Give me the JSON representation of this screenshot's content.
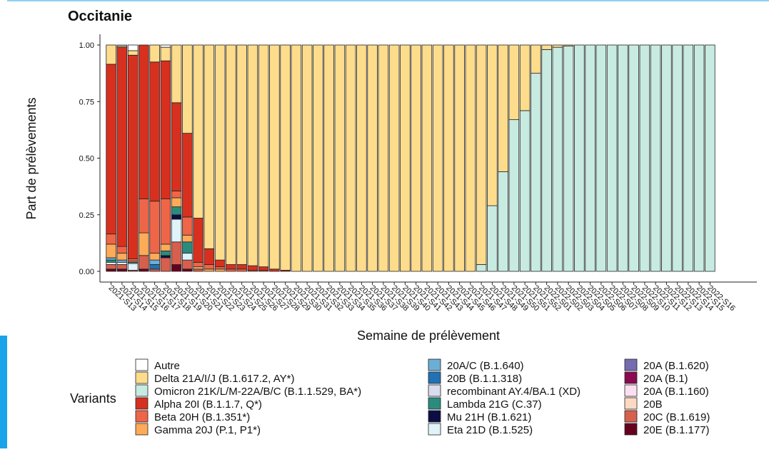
{
  "chart_data": {
    "type": "stacked-bar",
    "title": "Occitanie",
    "x_label": "Semaine de prélèvement",
    "y_label": "Part de prélèvements",
    "legend_title": "Variants",
    "ylim": [
      0,
      1.0
    ],
    "yticks": [
      {
        "value": 0,
        "label": "0.00"
      },
      {
        "value": 0.25,
        "label": "0.25"
      },
      {
        "value": 0.5,
        "label": "0.50"
      },
      {
        "value": 0.75,
        "label": "0.75"
      },
      {
        "value": 1.0,
        "label": "1.00"
      }
    ],
    "categories": [
      "2021-S13",
      "2021-S14",
      "2021-S15",
      "2021-S16",
      "2021-S17",
      "2021-S18",
      "2021-S19",
      "2021-S20",
      "2021-S21",
      "2021-S22",
      "2021-S23",
      "2021-S24",
      "2021-S25",
      "2021-S26",
      "2021-S27",
      "2021-S28",
      "2021-S29",
      "2021-S30",
      "2021-S31",
      "2021-S32",
      "2021-S33",
      "2021-S34",
      "2021-S35",
      "2021-S36",
      "2021-S37",
      "2021-S38",
      "2021-S39",
      "2021-S40",
      "2021-S41",
      "2021-S42",
      "2021-S43",
      "2021-S44",
      "2021-S45",
      "2021-S46",
      "2021-S47",
      "2021-S48",
      "2021-S49",
      "2021-S50",
      "2021-S51",
      "2021-S52",
      "2022-S01",
      "2022-S02",
      "2022-S03",
      "2022-S04",
      "2022-S05",
      "2022-S06",
      "2022-S07",
      "2022-S08",
      "2022-S09",
      "2022-S10",
      "2022-S11",
      "2022-S12",
      "2022-S13",
      "2022-S14",
      "2022-S15",
      "2022-S16"
    ],
    "series": [
      {
        "name": "Autre",
        "color": "#ffffff",
        "values": [
          0,
          0.005,
          0.025,
          0,
          0,
          0.01,
          0,
          0,
          0,
          0,
          0,
          0,
          0,
          0,
          0,
          0,
          0,
          0,
          0,
          0,
          0,
          0,
          0,
          0,
          0,
          0,
          0,
          0,
          0,
          0,
          0,
          0,
          0,
          0,
          0,
          0,
          0,
          0,
          0,
          0,
          0,
          0,
          0,
          0,
          0,
          0,
          0,
          0,
          0,
          0,
          0,
          0,
          0,
          0,
          0,
          0
        ]
      },
      {
        "name": "Delta 21A/I/J (B.1.617.2, AY*)",
        "color": "#fddc8c",
        "values": [
          0.085,
          0.005,
          0.02,
          0,
          0.075,
          0.06,
          0.255,
          0.39,
          0.765,
          0.9,
          0.95,
          0.97,
          0.97,
          0.975,
          0.98,
          0.99,
          0.995,
          1,
          1,
          1,
          1,
          1,
          1,
          1,
          1,
          1,
          1,
          1,
          1,
          1,
          1,
          1,
          1,
          1,
          0.97,
          0.71,
          0.56,
          0.33,
          0.29,
          0.125,
          0.02,
          0.01,
          0.005,
          0,
          0,
          0,
          0,
          0,
          0,
          0,
          0,
          0,
          0,
          0,
          0,
          0
        ]
      },
      {
        "name": "Omicron 21K/L/M-22A/B/C (B.1.1.529, BA*)",
        "color": "#c7ebe1",
        "values": [
          0,
          0,
          0,
          0,
          0,
          0,
          0,
          0,
          0,
          0,
          0,
          0,
          0,
          0,
          0,
          0,
          0,
          0,
          0,
          0,
          0,
          0,
          0,
          0,
          0,
          0,
          0,
          0,
          0,
          0,
          0,
          0,
          0,
          0,
          0.03,
          0.29,
          0.44,
          0.67,
          0.71,
          0.875,
          0.98,
          0.99,
          0.995,
          1,
          1,
          1,
          1,
          1,
          1,
          1,
          1,
          1,
          1,
          1,
          1,
          1
        ]
      },
      {
        "name": "Alpha 20I (B.1.1.7, Q*)",
        "color": "#d7301f",
        "values": [
          0.75,
          0.88,
          0.9,
          0.68,
          0.615,
          0.61,
          0.39,
          0.37,
          0.195,
          0.07,
          0.03,
          0.02,
          0.02,
          0.02,
          0.015,
          0.01,
          0.005,
          0,
          0,
          0,
          0,
          0,
          0,
          0,
          0,
          0,
          0,
          0,
          0,
          0,
          0,
          0,
          0,
          0,
          0,
          0,
          0,
          0,
          0,
          0,
          0,
          0,
          0,
          0,
          0,
          0,
          0,
          0,
          0,
          0,
          0,
          0,
          0,
          0,
          0,
          0
        ]
      },
      {
        "name": "Beta 20H (B.1.351*)",
        "color": "#ef6548",
        "values": [
          0.045,
          0.03,
          0.01,
          0.15,
          0.23,
          0.2,
          0.03,
          0.08,
          0.02,
          0.02,
          0.01,
          0.01,
          0.01,
          0.005,
          0.005,
          0,
          0,
          0,
          0,
          0,
          0,
          0,
          0,
          0,
          0,
          0,
          0,
          0,
          0,
          0,
          0,
          0,
          0,
          0,
          0,
          0,
          0,
          0,
          0,
          0,
          0,
          0,
          0,
          0,
          0,
          0,
          0,
          0,
          0,
          0,
          0,
          0,
          0,
          0,
          0,
          0
        ]
      },
      {
        "name": "Gamma 20J (P.1, P1*)",
        "color": "#fdab58",
        "values": [
          0.06,
          0.03,
          0.005,
          0.1,
          0.03,
          0.03,
          0.04,
          0.03,
          0.01,
          0.01,
          0.01,
          0,
          0,
          0,
          0,
          0,
          0,
          0,
          0,
          0,
          0,
          0,
          0,
          0,
          0,
          0,
          0,
          0,
          0,
          0,
          0,
          0,
          0,
          0,
          0,
          0,
          0,
          0,
          0,
          0,
          0,
          0,
          0,
          0,
          0,
          0,
          0,
          0,
          0,
          0,
          0,
          0,
          0,
          0,
          0,
          0
        ]
      },
      {
        "name": "20A/C (B.1.640)",
        "color": "#6baed6",
        "values": [
          0.01,
          0.01,
          0.005,
          0,
          0.02,
          0,
          0,
          0,
          0,
          0,
          0,
          0,
          0,
          0,
          0,
          0,
          0,
          0,
          0,
          0,
          0,
          0,
          0,
          0,
          0,
          0,
          0,
          0,
          0,
          0,
          0,
          0,
          0,
          0,
          0,
          0,
          0,
          0,
          0,
          0,
          0,
          0,
          0,
          0,
          0,
          0,
          0,
          0,
          0,
          0,
          0,
          0,
          0,
          0,
          0,
          0
        ]
      },
      {
        "name": "20B (B.1.1.318)",
        "color": "#2171b5",
        "values": [
          0,
          0,
          0,
          0,
          0.02,
          0,
          0,
          0,
          0,
          0,
          0,
          0,
          0,
          0,
          0,
          0,
          0,
          0,
          0,
          0,
          0,
          0,
          0,
          0,
          0,
          0,
          0,
          0,
          0,
          0,
          0,
          0,
          0,
          0,
          0,
          0,
          0,
          0,
          0,
          0,
          0,
          0,
          0,
          0,
          0,
          0,
          0,
          0,
          0,
          0,
          0,
          0,
          0,
          0,
          0,
          0
        ]
      },
      {
        "name": "recombinant AY.4/BA.1 (XD)",
        "color": "#d9dcee",
        "values": [
          0,
          0,
          0,
          0,
          0,
          0,
          0,
          0,
          0,
          0,
          0,
          0,
          0,
          0,
          0,
          0,
          0,
          0,
          0,
          0,
          0,
          0,
          0,
          0,
          0,
          0,
          0,
          0,
          0,
          0,
          0,
          0,
          0,
          0,
          0,
          0,
          0,
          0,
          0,
          0,
          0,
          0,
          0,
          0,
          0,
          0,
          0,
          0,
          0,
          0,
          0,
          0,
          0,
          0,
          0,
          0
        ]
      },
      {
        "name": "Lambda 21G (C.37)",
        "color": "#2b8c7e",
        "values": [
          0.01,
          0,
          0,
          0,
          0,
          0.02,
          0.035,
          0.05,
          0,
          0,
          0,
          0,
          0,
          0,
          0,
          0,
          0,
          0,
          0,
          0,
          0,
          0,
          0,
          0,
          0,
          0,
          0,
          0,
          0,
          0,
          0,
          0,
          0,
          0,
          0,
          0,
          0,
          0,
          0,
          0,
          0,
          0,
          0,
          0,
          0,
          0,
          0,
          0,
          0,
          0,
          0,
          0,
          0,
          0,
          0,
          0
        ]
      },
      {
        "name": "Mu 21H (B.1.621)",
        "color": "#0d0d45",
        "values": [
          0,
          0,
          0,
          0,
          0,
          0.01,
          0.02,
          0,
          0,
          0,
          0,
          0,
          0,
          0,
          0,
          0,
          0,
          0,
          0,
          0,
          0,
          0,
          0,
          0,
          0,
          0,
          0,
          0,
          0,
          0,
          0,
          0,
          0,
          0,
          0,
          0,
          0,
          0,
          0,
          0,
          0,
          0,
          0,
          0,
          0,
          0,
          0,
          0,
          0,
          0,
          0,
          0,
          0,
          0,
          0,
          0
        ]
      },
      {
        "name": "Eta 21D (B.1.525)",
        "color": "#e0f3f8",
        "values": [
          0.01,
          0.01,
          0.03,
          0,
          0,
          0,
          0.1,
          0.03,
          0,
          0,
          0,
          0,
          0,
          0,
          0,
          0,
          0,
          0,
          0,
          0,
          0,
          0,
          0,
          0,
          0,
          0,
          0,
          0,
          0,
          0,
          0,
          0,
          0,
          0,
          0,
          0,
          0,
          0,
          0,
          0,
          0,
          0,
          0,
          0,
          0,
          0,
          0,
          0,
          0,
          0,
          0,
          0,
          0,
          0,
          0,
          0
        ]
      },
      {
        "name": "20A (B.1.620)",
        "color": "#756bb1",
        "values": [
          0,
          0,
          0,
          0,
          0,
          0,
          0,
          0,
          0,
          0,
          0,
          0,
          0,
          0,
          0,
          0,
          0,
          0,
          0,
          0,
          0,
          0,
          0,
          0,
          0,
          0,
          0,
          0,
          0,
          0,
          0,
          0,
          0,
          0,
          0,
          0,
          0,
          0,
          0,
          0,
          0,
          0,
          0,
          0,
          0,
          0,
          0,
          0,
          0,
          0,
          0,
          0,
          0,
          0,
          0,
          0
        ]
      },
      {
        "name": "20A (B.1)",
        "color": "#8b0a50",
        "values": [
          0,
          0,
          0,
          0,
          0,
          0,
          0,
          0,
          0,
          0,
          0,
          0,
          0,
          0,
          0,
          0,
          0,
          0,
          0,
          0,
          0,
          0,
          0,
          0,
          0,
          0,
          0,
          0,
          0,
          0,
          0,
          0,
          0,
          0,
          0,
          0,
          0,
          0,
          0,
          0,
          0,
          0,
          0,
          0,
          0,
          0,
          0,
          0,
          0,
          0,
          0,
          0,
          0,
          0,
          0,
          0
        ]
      },
      {
        "name": "20A (B.1.160)",
        "color": "#fde0ef",
        "values": [
          0,
          0,
          0,
          0,
          0,
          0,
          0,
          0,
          0,
          0,
          0,
          0,
          0,
          0,
          0,
          0,
          0,
          0,
          0,
          0,
          0,
          0,
          0,
          0,
          0,
          0,
          0,
          0,
          0,
          0,
          0,
          0,
          0,
          0,
          0,
          0,
          0,
          0,
          0,
          0,
          0,
          0,
          0,
          0,
          0,
          0,
          0,
          0,
          0,
          0,
          0,
          0,
          0,
          0,
          0,
          0
        ]
      },
      {
        "name": "20B",
        "color": "#fdd9c4",
        "values": [
          0,
          0,
          0,
          0,
          0,
          0,
          0,
          0,
          0,
          0,
          0,
          0,
          0,
          0,
          0,
          0,
          0,
          0,
          0,
          0,
          0,
          0,
          0,
          0,
          0,
          0,
          0,
          0,
          0,
          0,
          0,
          0,
          0,
          0,
          0,
          0,
          0,
          0,
          0,
          0,
          0,
          0,
          0,
          0,
          0,
          0,
          0,
          0,
          0,
          0,
          0,
          0,
          0,
          0,
          0,
          0
        ]
      },
      {
        "name": "20C (B.1.619)",
        "color": "#d6604d",
        "values": [
          0.02,
          0.02,
          0.005,
          0.06,
          0.01,
          0.06,
          0.1,
          0.04,
          0.01,
          0,
          0,
          0,
          0,
          0,
          0,
          0,
          0,
          0,
          0,
          0,
          0,
          0,
          0,
          0,
          0,
          0,
          0,
          0,
          0,
          0,
          0,
          0,
          0,
          0,
          0,
          0,
          0,
          0,
          0,
          0,
          0,
          0,
          0,
          0,
          0,
          0,
          0,
          0,
          0,
          0,
          0,
          0,
          0,
          0,
          0,
          0
        ]
      },
      {
        "name": "20E (B.1.177)",
        "color": "#67001f",
        "values": [
          0.01,
          0.01,
          0,
          0.01,
          0,
          0,
          0.03,
          0.01,
          0,
          0,
          0,
          0,
          0,
          0,
          0,
          0,
          0,
          0,
          0,
          0,
          0,
          0,
          0,
          0,
          0,
          0,
          0,
          0,
          0,
          0,
          0,
          0,
          0,
          0,
          0,
          0,
          0,
          0,
          0,
          0,
          0,
          0,
          0,
          0,
          0,
          0,
          0,
          0,
          0,
          0,
          0,
          0,
          0,
          0,
          0,
          0
        ]
      }
    ]
  }
}
